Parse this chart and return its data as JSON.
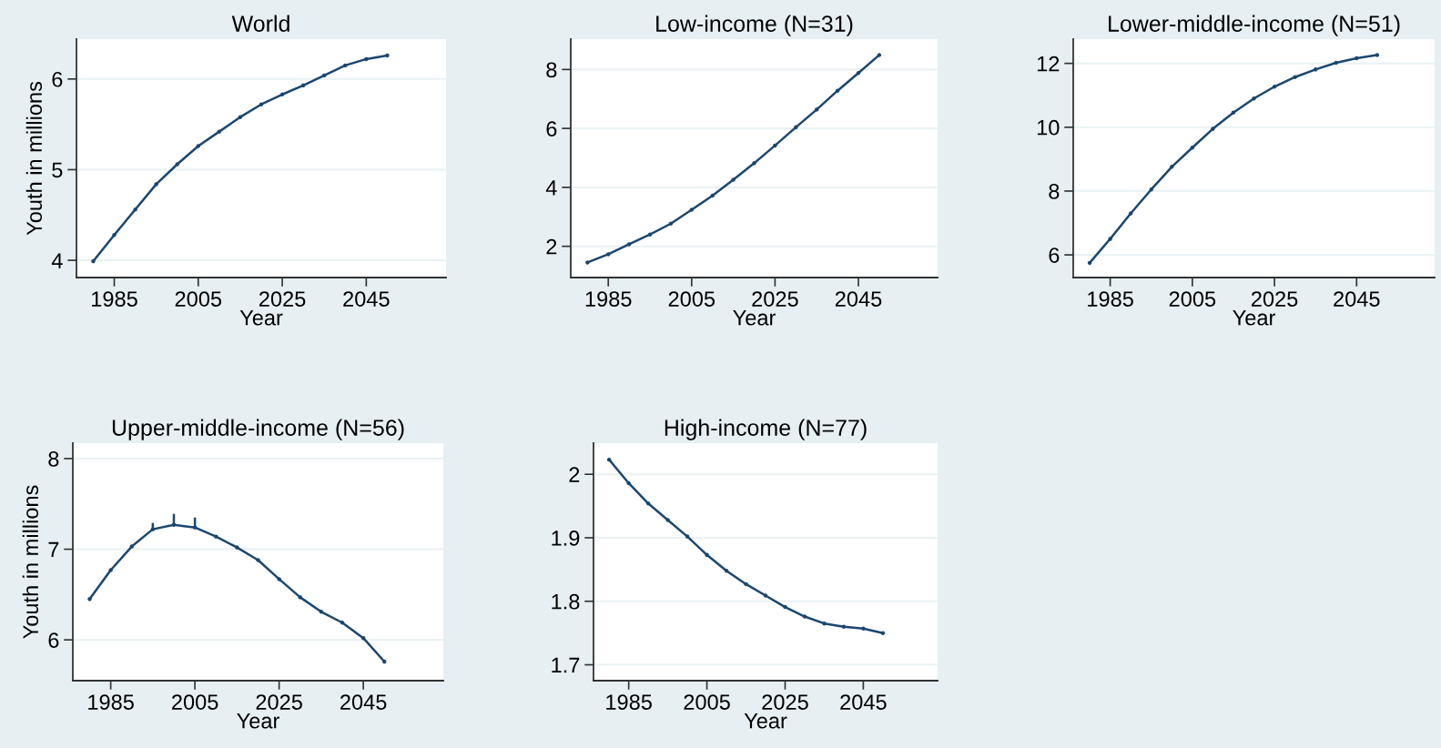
{
  "chart_data": [
    {
      "type": "line",
      "title": "World",
      "xlabel": "Year",
      "ylabel": "Youth in millions",
      "color": "#1a476f",
      "marker": "circle",
      "grid": "y",
      "x": [
        1980,
        1985,
        1990,
        1995,
        2000,
        2005,
        2010,
        2015,
        2020,
        2025,
        2030,
        2035,
        2040,
        2045,
        2050
      ],
      "values": [
        3.99,
        4.28,
        4.56,
        4.84,
        5.06,
        5.26,
        5.42,
        5.58,
        5.72,
        5.83,
        5.93,
        6.04,
        6.15,
        6.22,
        6.26
      ],
      "xlim": [
        1976,
        2064
      ],
      "ylim": [
        3.81,
        6.44
      ],
      "xticks": [
        1985,
        2005,
        2025,
        2045
      ],
      "yticks": [
        4,
        5,
        6
      ]
    },
    {
      "type": "line",
      "title": "Low-income (N=31)",
      "xlabel": "Year",
      "color": "#1a476f",
      "marker": "circle",
      "grid": "y",
      "x": [
        1980,
        1985,
        1990,
        1995,
        2000,
        2005,
        2010,
        2015,
        2020,
        2025,
        2030,
        2035,
        2040,
        2045,
        2050
      ],
      "values": [
        1.45,
        1.73,
        2.07,
        2.4,
        2.77,
        3.24,
        3.72,
        4.26,
        4.82,
        5.42,
        6.04,
        6.64,
        7.28,
        7.88,
        8.49
      ],
      "xlim": [
        1976,
        2064
      ],
      "ylim": [
        0.94,
        9.03
      ],
      "xticks": [
        1985,
        2005,
        2025,
        2045
      ],
      "yticks": [
        2,
        4,
        6,
        8
      ]
    },
    {
      "type": "line",
      "title": "Lower-middle-income (N=51)",
      "xlabel": "Year",
      "color": "#1a476f",
      "marker": "circle",
      "grid": "y",
      "x": [
        1980,
        1985,
        1990,
        1995,
        2000,
        2005,
        2010,
        2015,
        2020,
        2025,
        2030,
        2035,
        2040,
        2045,
        2050
      ],
      "values": [
        5.75,
        6.5,
        7.3,
        8.05,
        8.76,
        9.36,
        9.95,
        10.46,
        10.9,
        11.27,
        11.57,
        11.81,
        12.02,
        12.16,
        12.26
      ],
      "xlim": [
        1976,
        2064
      ],
      "ylim": [
        5.29,
        12.76
      ],
      "xticks": [
        1985,
        2005,
        2025,
        2045
      ],
      "yticks": [
        6,
        8,
        10,
        12
      ]
    },
    {
      "type": "line",
      "title": "Upper-middle-income (N=56)",
      "xlabel": "Year",
      "ylabel": "Youth in millions",
      "color": "#1a476f",
      "marker": "circle",
      "grid": "y",
      "x": [
        1980,
        1985,
        1990,
        1995,
        2000,
        2005,
        2010,
        2015,
        2020,
        2025,
        2030,
        2035,
        2040,
        2045,
        2050
      ],
      "values": [
        6.45,
        6.77,
        7.03,
        7.22,
        7.27,
        7.24,
        7.14,
        7.02,
        6.88,
        6.67,
        6.47,
        6.31,
        6.19,
        6.02,
        5.76
      ],
      "errors": [
        null,
        null,
        null,
        [
          7.22,
          7.29
        ],
        [
          7.27,
          7.39
        ],
        [
          7.24,
          7.35
        ],
        null,
        null,
        null,
        null,
        null,
        null,
        null,
        null,
        null
      ],
      "xlim": [
        1976,
        2064
      ],
      "ylim": [
        5.55,
        8.17
      ],
      "xticks": [
        1985,
        2005,
        2025,
        2045
      ],
      "yticks": [
        6,
        7,
        8
      ]
    },
    {
      "type": "line",
      "title": "High-income (N=77)",
      "xlabel": "Year",
      "color": "#1a476f",
      "marker": "circle",
      "grid": "y",
      "x": [
        1980,
        1985,
        1990,
        1995,
        2000,
        2005,
        2010,
        2015,
        2020,
        2025,
        2030,
        2035,
        2040,
        2045,
        2050
      ],
      "values": [
        2.023,
        1.986,
        1.954,
        1.928,
        1.902,
        1.873,
        1.848,
        1.827,
        1.809,
        1.791,
        1.776,
        1.765,
        1.76,
        1.757,
        1.75
      ],
      "xlim": [
        1976,
        2064
      ],
      "ylim": [
        1.675,
        2.049
      ],
      "xticks": [
        1985,
        2005,
        2025,
        2045
      ],
      "yticks": [
        1.7,
        1.8,
        1.9,
        2
      ]
    }
  ]
}
